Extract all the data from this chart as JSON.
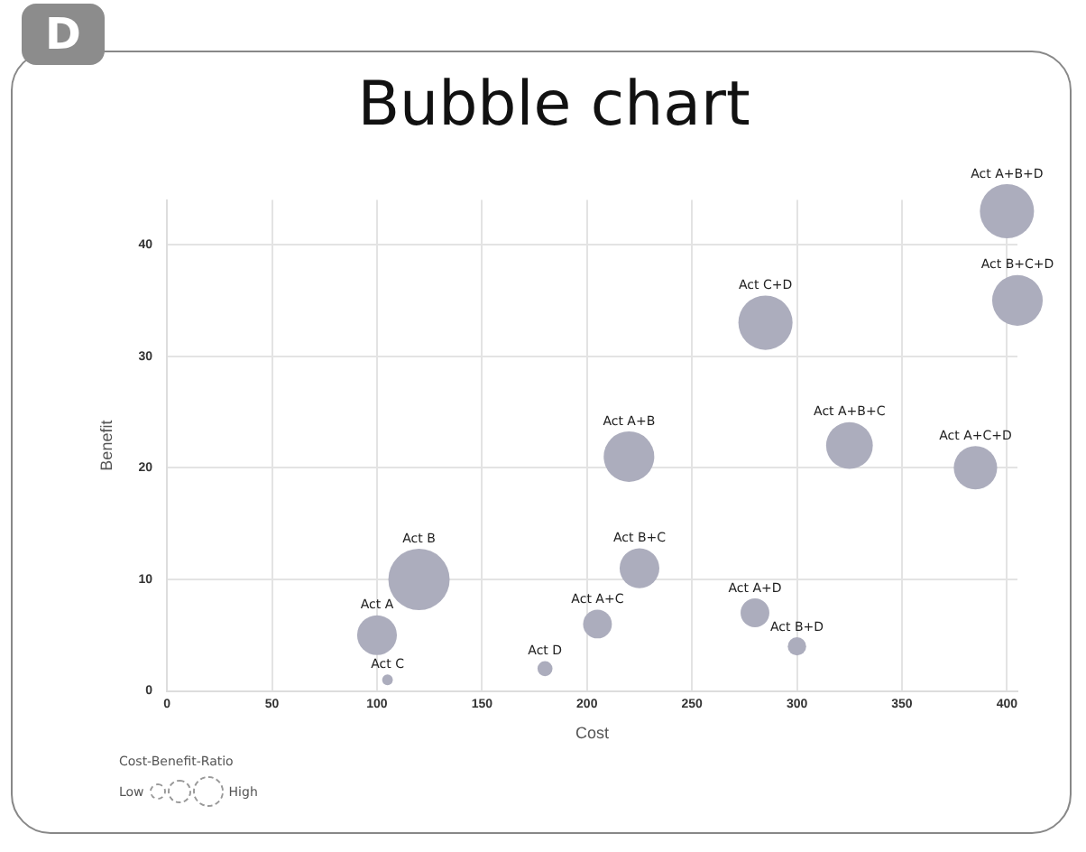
{
  "chart_data": {
    "type": "bubble",
    "title": "Bubble chart",
    "xlabel": "Cost",
    "ylabel": "Benefit",
    "legend_title": "Cost-Benefit-Ratio",
    "x": [
      100,
      120,
      105,
      180,
      205,
      220,
      225,
      285,
      280,
      300,
      325,
      385,
      400,
      405
    ],
    "values": [
      5,
      10,
      1,
      2,
      6,
      21,
      11,
      33,
      7,
      4,
      22,
      20,
      43,
      35
    ],
    "sizes": [
      0.42,
      1,
      0.03,
      0.06,
      0.22,
      0.68,
      0.42,
      0.78,
      0.22,
      0.09,
      0.58,
      0.5,
      0.78,
      0.68
    ],
    "color": "#acadbd",
    "xlim": [
      0,
      405
    ],
    "xticks": [
      0,
      50,
      100,
      150,
      200,
      250,
      300,
      350,
      400
    ],
    "ylim": [
      0,
      44
    ],
    "yticks": [
      0,
      10,
      20,
      30,
      40
    ],
    "grid": true,
    "annotations": [
      "D",
      "Low",
      "High",
      {
        "text": "Act A",
        "x": 100,
        "y": 5
      },
      {
        "text": "Act B",
        "x": 120,
        "y": 10
      },
      {
        "text": "Act C",
        "x": 105,
        "y": 1
      },
      {
        "text": "Act D",
        "x": 180,
        "y": 2
      },
      {
        "text": "Act A+C",
        "x": 205,
        "y": 6
      },
      {
        "text": "Act A+B",
        "x": 220,
        "y": 21
      },
      {
        "text": "Act B+C",
        "x": 225,
        "y": 11
      },
      {
        "text": "Act C+D",
        "x": 285,
        "y": 33
      },
      {
        "text": "Act A+D",
        "x": 280,
        "y": 7
      },
      {
        "text": "Act B+D",
        "x": 300,
        "y": 4
      },
      {
        "text": "Act A+B+C",
        "x": 325,
        "y": 22
      },
      {
        "text": "Act A+C+D",
        "x": 385,
        "y": 20
      },
      {
        "text": "Act A+B+D",
        "x": 400,
        "y": 43
      },
      {
        "text": "Act B+C+D",
        "x": 405,
        "y": 35
      }
    ]
  }
}
